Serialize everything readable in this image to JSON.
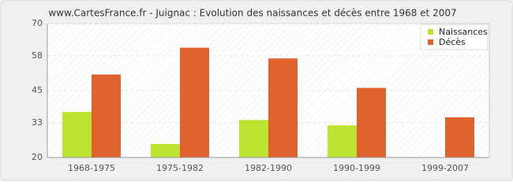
{
  "chart_data": {
    "type": "bar",
    "title": "www.CartesFrance.fr - Juignac : Evolution des naissances et décès entre 1968 et 2007",
    "categories": [
      "1968-1975",
      "1975-1982",
      "1982-1990",
      "1990-1999",
      "1999-2007"
    ],
    "series": [
      {
        "name": "Naissances",
        "color": "#bde22f",
        "values": [
          37,
          25,
          34,
          32,
          20
        ]
      },
      {
        "name": "Décès",
        "color": "#e0622f",
        "values": [
          51,
          61,
          57,
          46,
          35
        ]
      }
    ],
    "ylim": [
      20,
      70
    ],
    "yticks": [
      20,
      33,
      45,
      58,
      70
    ],
    "grid": true,
    "legend": "top-right"
  }
}
